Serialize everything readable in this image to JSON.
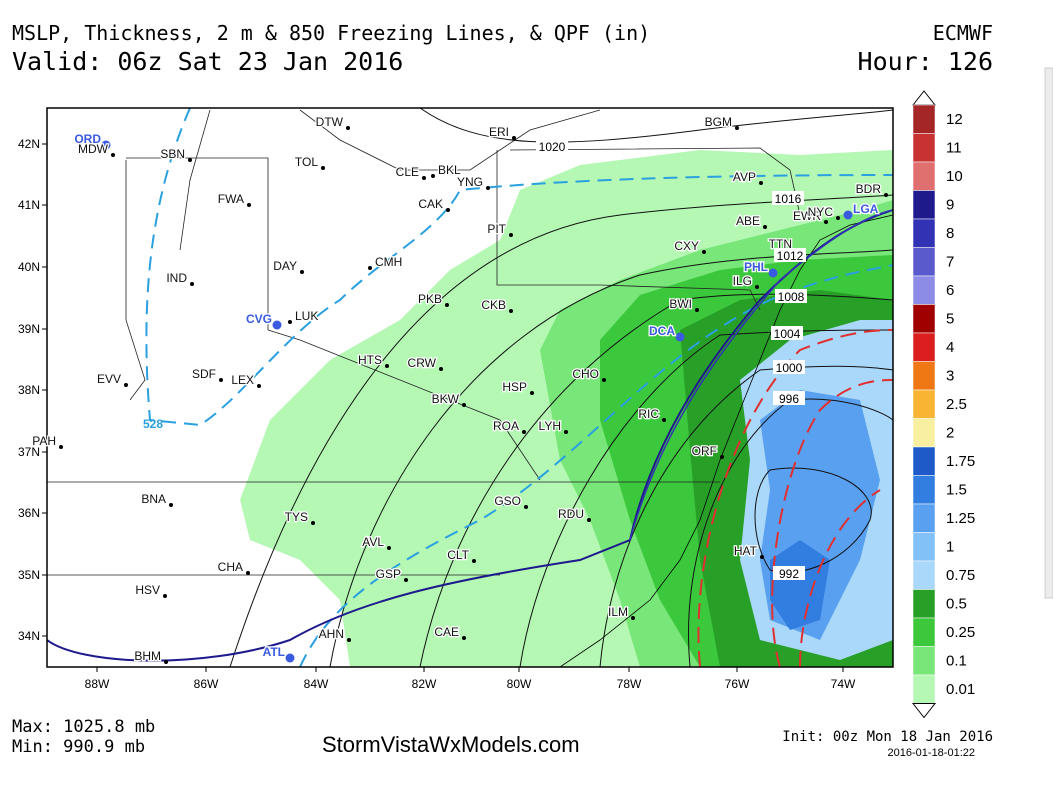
{
  "header": {
    "title": "MSLP, Thickness, 2 m & 850 Freezing Lines, & QPF (in)",
    "model": "ECMWF",
    "valid": "Valid: 06z Sat 23 Jan 2016",
    "hour": "Hour: 126"
  },
  "map": {
    "lon_labels": [
      "88W",
      "86W",
      "84W",
      "82W",
      "80W",
      "78W",
      "76W",
      "74W"
    ],
    "lat_labels": [
      "42N",
      "41N",
      "40N",
      "39N",
      "38N",
      "37N",
      "36N",
      "35N",
      "34N"
    ],
    "cities": [
      "ORD",
      "MDW",
      "SBN",
      "DTW",
      "TOL",
      "CLE",
      "BKL",
      "YNG",
      "ERI",
      "BGM",
      "AVP",
      "BDR",
      "EWR",
      "NYC",
      "LGA",
      "ABE",
      "TTN",
      "PHL",
      "ILG",
      "BWI",
      "DCA",
      "CXY",
      "PIT",
      "CAK",
      "FWA",
      "DAY",
      "CMH",
      "IND",
      "CVG",
      "LUK",
      "PKB",
      "CKB",
      "HTS",
      "CRW",
      "SDF",
      "LEX",
      "EVV",
      "BKW",
      "HSP",
      "CHO",
      "RIC",
      "ROA",
      "LYH",
      "PAH",
      "ORF",
      "BNA",
      "TYS",
      "GSO",
      "RDU",
      "AVL",
      "CHA",
      "CLT",
      "GSP",
      "HAT",
      "HSV",
      "ILM",
      "AHN",
      "CAE",
      "ATL",
      "BHM"
    ],
    "isobar_labels": [
      "1020",
      "1016",
      "1012",
      "1008",
      "1004",
      "1000",
      "996",
      "992"
    ],
    "thickness_label": "528"
  },
  "legend": {
    "items": [
      {
        "label": "12",
        "color": "#a52626"
      },
      {
        "label": "11",
        "color": "#c83232"
      },
      {
        "label": "10",
        "color": "#e07070"
      },
      {
        "label": "9",
        "color": "#1e1a8c"
      },
      {
        "label": "8",
        "color": "#3232b4"
      },
      {
        "label": "7",
        "color": "#5a5acc"
      },
      {
        "label": "6",
        "color": "#8c8ce6"
      },
      {
        "label": "5",
        "color": "#a00000"
      },
      {
        "label": "4",
        "color": "#dc1e1e"
      },
      {
        "label": "3",
        "color": "#f07814"
      },
      {
        "label": "2.5",
        "color": "#f8b432"
      },
      {
        "label": "2",
        "color": "#f8f0a0"
      },
      {
        "label": "1.75",
        "color": "#1e5ac8"
      },
      {
        "label": "1.5",
        "color": "#327ee0"
      },
      {
        "label": "1.25",
        "color": "#5aa0f0"
      },
      {
        "label": "1",
        "color": "#82c0f8"
      },
      {
        "label": "0.75",
        "color": "#aad8fa"
      },
      {
        "label": "0.5",
        "color": "#28a028"
      },
      {
        "label": "0.25",
        "color": "#3cc83c"
      },
      {
        "label": "0.1",
        "color": "#78e678"
      },
      {
        "label": "0.01",
        "color": "#b4f8b4"
      }
    ]
  },
  "footer": {
    "max": "Max: 1025.8 mb",
    "min": "Min: 990.9 mb",
    "site": "StormVistaWxModels.com",
    "init": "Init: 00z Mon 18 Jan 2016",
    "stamp": "2016-01-18-01:22"
  }
}
